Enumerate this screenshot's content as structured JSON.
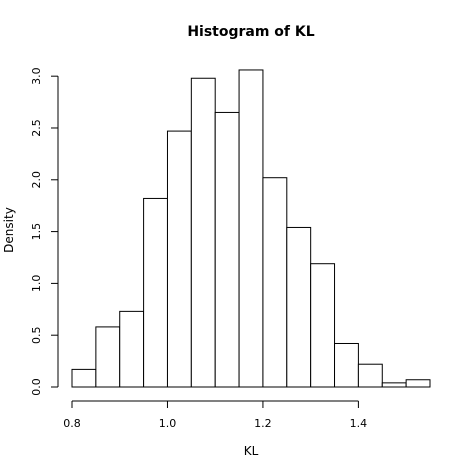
{
  "chart_data": {
    "type": "bar",
    "title": "Histogram of KL",
    "xlabel": "KL",
    "ylabel": "Density",
    "xlim": [
      0.8,
      1.55
    ],
    "ylim": [
      0,
      3.05
    ],
    "x_ticks": [
      0.8,
      1.0,
      1.2,
      1.4
    ],
    "x_tick_labels": [
      "0.8",
      "1.0",
      "1.2",
      "1.4"
    ],
    "y_ticks": [
      0.0,
      0.5,
      1.0,
      1.5,
      2.0,
      2.5,
      3.0
    ],
    "y_tick_labels": [
      "0.0",
      "0.5",
      "1.0",
      "1.5",
      "2.0",
      "2.5",
      "3.0"
    ],
    "bins": [
      {
        "x0": 0.8,
        "x1": 0.85,
        "value": 0.17
      },
      {
        "x0": 0.85,
        "x1": 0.9,
        "value": 0.58
      },
      {
        "x0": 0.9,
        "x1": 0.95,
        "value": 0.73
      },
      {
        "x0": 0.95,
        "x1": 1.0,
        "value": 1.82
      },
      {
        "x0": 1.0,
        "x1": 1.05,
        "value": 2.47
      },
      {
        "x0": 1.05,
        "x1": 1.1,
        "value": 2.98
      },
      {
        "x0": 1.1,
        "x1": 1.15,
        "value": 2.65
      },
      {
        "x0": 1.15,
        "x1": 1.2,
        "value": 3.06
      },
      {
        "x0": 1.2,
        "x1": 1.25,
        "value": 2.02
      },
      {
        "x0": 1.25,
        "x1": 1.3,
        "value": 1.54
      },
      {
        "x0": 1.3,
        "x1": 1.35,
        "value": 1.19
      },
      {
        "x0": 1.35,
        "x1": 1.4,
        "value": 0.42
      },
      {
        "x0": 1.4,
        "x1": 1.45,
        "value": 0.22
      },
      {
        "x0": 1.45,
        "x1": 1.5,
        "value": 0.04
      },
      {
        "x0": 1.5,
        "x1": 1.55,
        "value": 0.07
      }
    ]
  }
}
